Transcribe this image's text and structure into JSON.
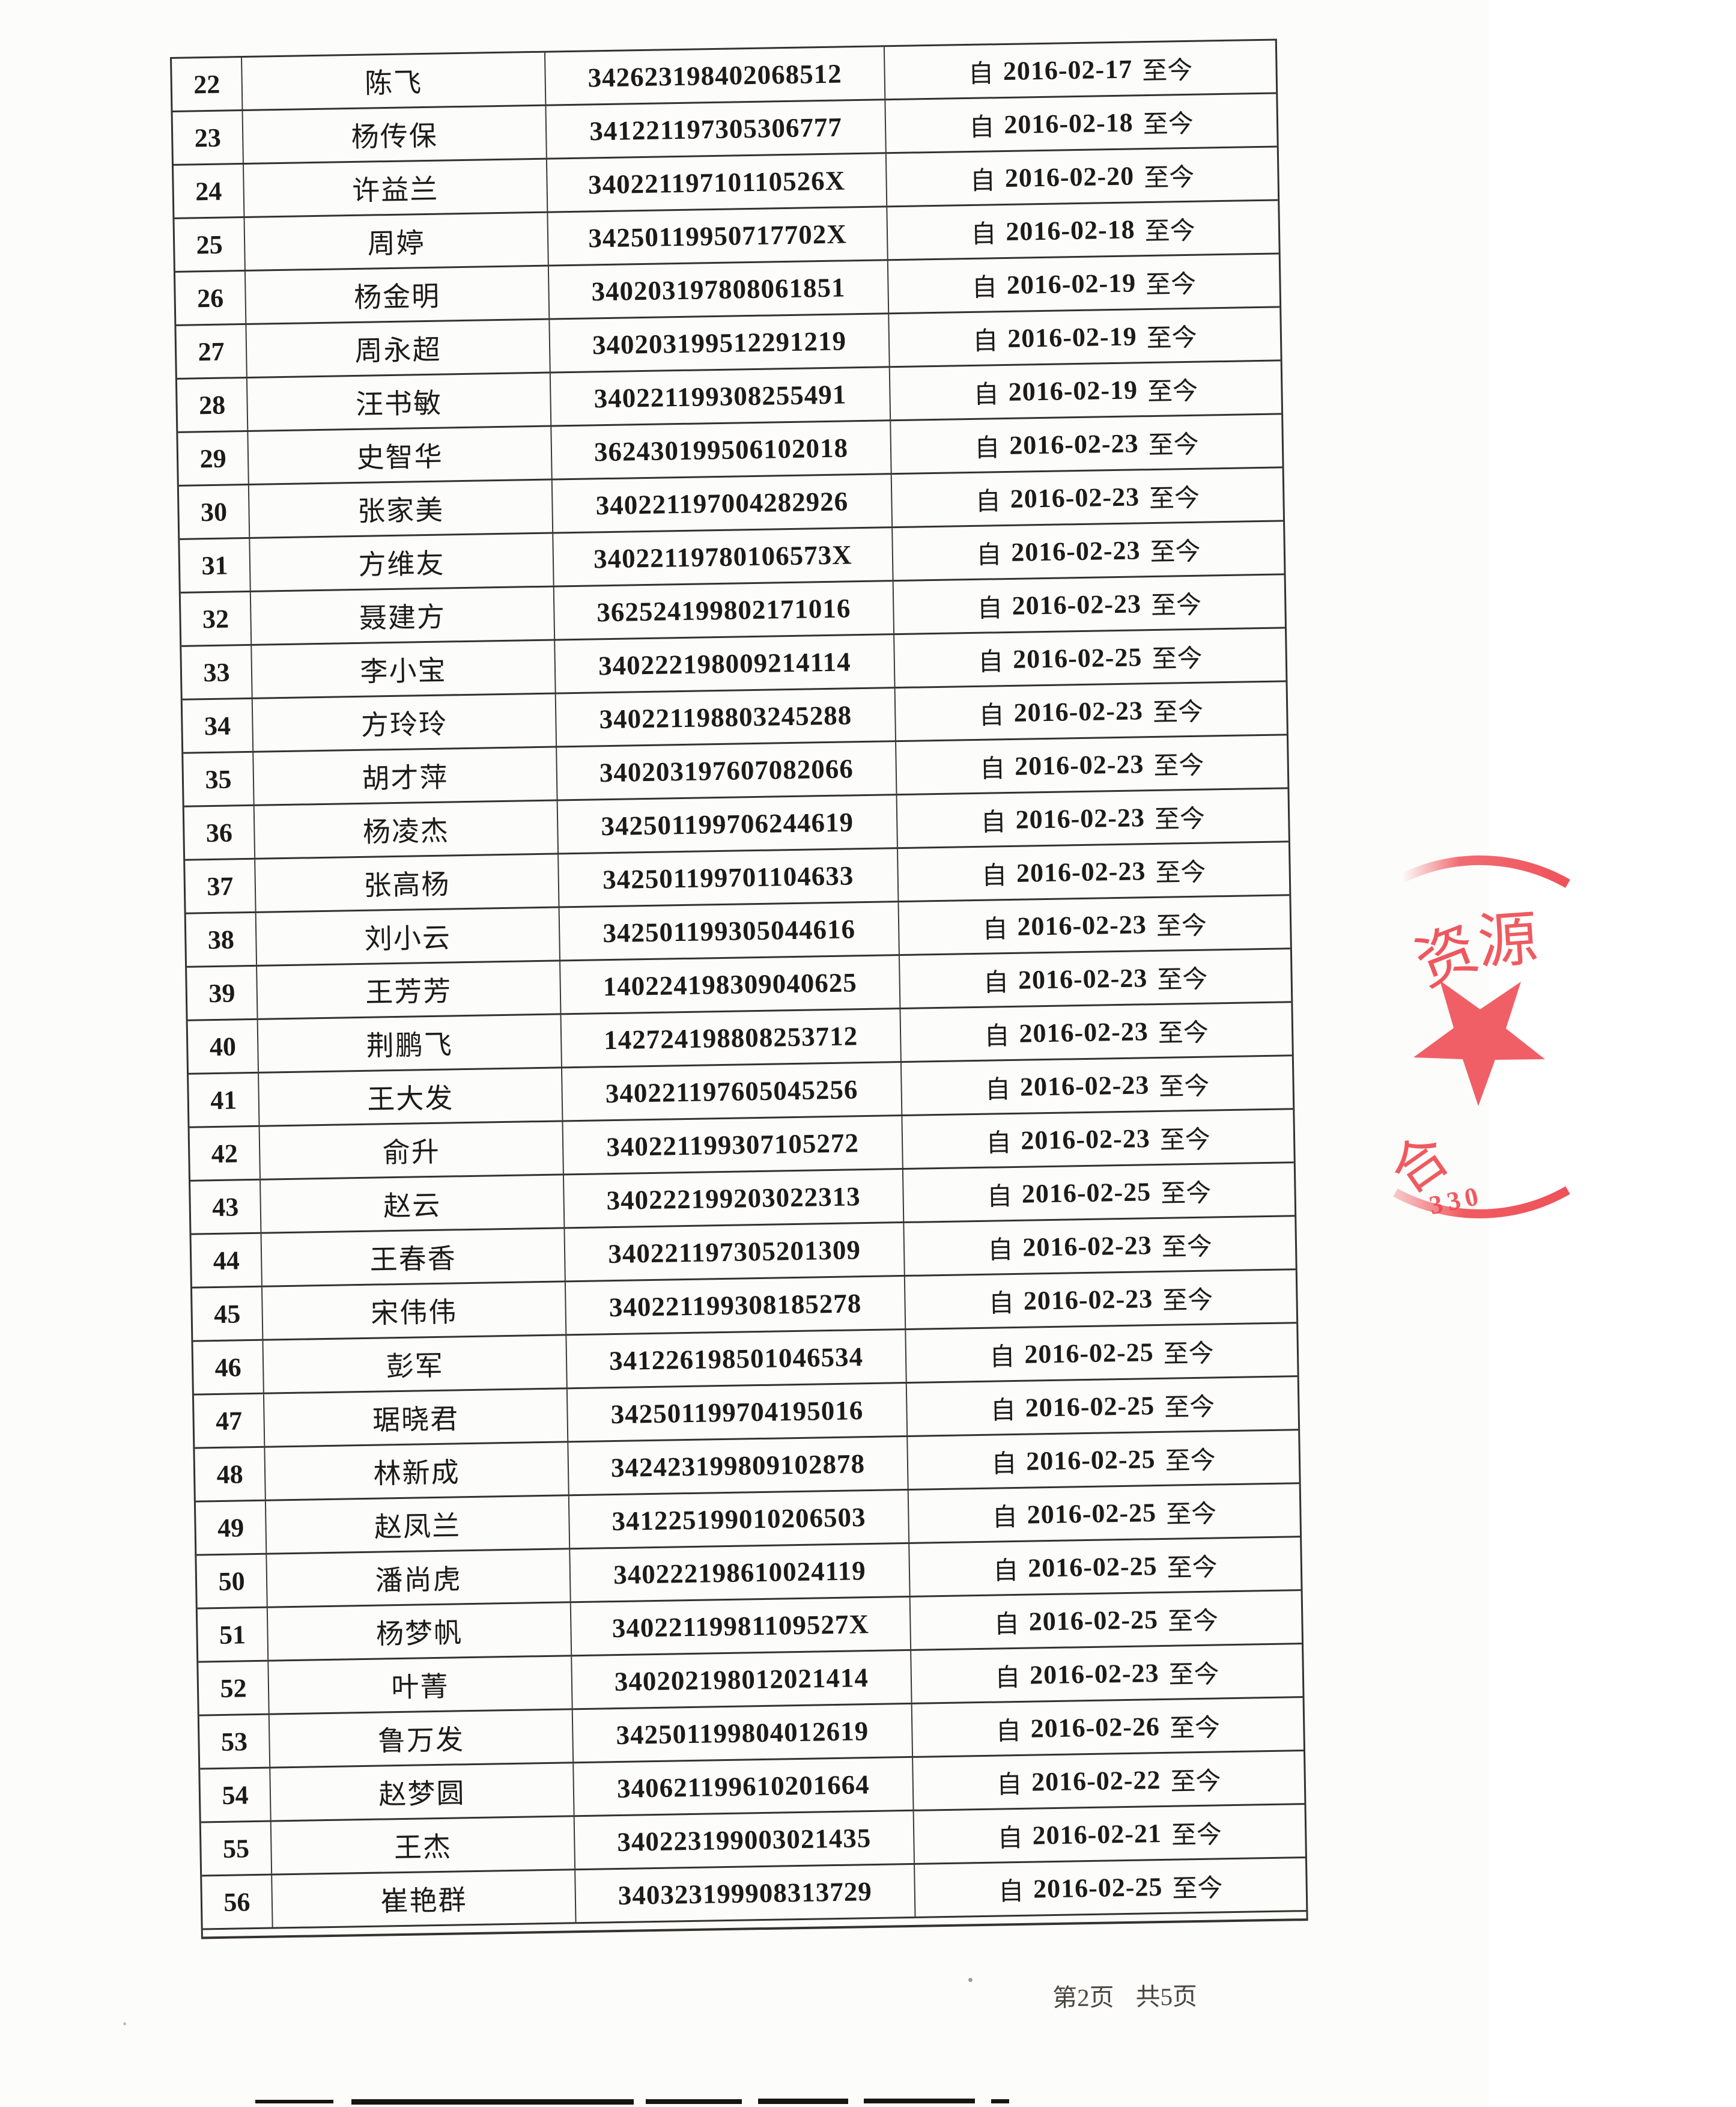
{
  "page": {
    "footer_current": "第2页",
    "footer_total": "共5页"
  },
  "table": {
    "period_prefix": "自",
    "period_suffix": "至今",
    "rows": [
      {
        "no": "22",
        "name": "陈飞",
        "id": "342623198402068512",
        "from": "2016-02-17"
      },
      {
        "no": "23",
        "name": "杨传保",
        "id": "341221197305306777",
        "from": "2016-02-18"
      },
      {
        "no": "24",
        "name": "许益兰",
        "id": "34022119710110526X",
        "from": "2016-02-20"
      },
      {
        "no": "25",
        "name": "周婷",
        "id": "34250119950717702X",
        "from": "2016-02-18"
      },
      {
        "no": "26",
        "name": "杨金明",
        "id": "340203197808061851",
        "from": "2016-02-19"
      },
      {
        "no": "27",
        "name": "周永超",
        "id": "340203199512291219",
        "from": "2016-02-19"
      },
      {
        "no": "28",
        "name": "汪书敏",
        "id": "340221199308255491",
        "from": "2016-02-19"
      },
      {
        "no": "29",
        "name": "史智华",
        "id": "362430199506102018",
        "from": "2016-02-23"
      },
      {
        "no": "30",
        "name": "张家美",
        "id": "340221197004282926",
        "from": "2016-02-23"
      },
      {
        "no": "31",
        "name": "方维友",
        "id": "34022119780106573X",
        "from": "2016-02-23"
      },
      {
        "no": "32",
        "name": "聂建方",
        "id": "362524199802171016",
        "from": "2016-02-23"
      },
      {
        "no": "33",
        "name": "李小宝",
        "id": "340222198009214114",
        "from": "2016-02-25"
      },
      {
        "no": "34",
        "name": "方玲玲",
        "id": "340221198803245288",
        "from": "2016-02-23"
      },
      {
        "no": "35",
        "name": "胡才萍",
        "id": "340203197607082066",
        "from": "2016-02-23"
      },
      {
        "no": "36",
        "name": "杨凌杰",
        "id": "342501199706244619",
        "from": "2016-02-23"
      },
      {
        "no": "37",
        "name": "张高杨",
        "id": "342501199701104633",
        "from": "2016-02-23"
      },
      {
        "no": "38",
        "name": "刘小云",
        "id": "342501199305044616",
        "from": "2016-02-23"
      },
      {
        "no": "39",
        "name": "王芳芳",
        "id": "140224198309040625",
        "from": "2016-02-23"
      },
      {
        "no": "40",
        "name": "荆鹏飞",
        "id": "142724198808253712",
        "from": "2016-02-23"
      },
      {
        "no": "41",
        "name": "王大发",
        "id": "340221197605045256",
        "from": "2016-02-23"
      },
      {
        "no": "42",
        "name": "俞升",
        "id": "340221199307105272",
        "from": "2016-02-23"
      },
      {
        "no": "43",
        "name": "赵云",
        "id": "340222199203022313",
        "from": "2016-02-25"
      },
      {
        "no": "44",
        "name": "王春香",
        "id": "340221197305201309",
        "from": "2016-02-23"
      },
      {
        "no": "45",
        "name": "宋伟伟",
        "id": "340221199308185278",
        "from": "2016-02-23"
      },
      {
        "no": "46",
        "name": "彭军",
        "id": "341226198501046534",
        "from": "2016-02-25"
      },
      {
        "no": "47",
        "name": "琚晓君",
        "id": "342501199704195016",
        "from": "2016-02-25"
      },
      {
        "no": "48",
        "name": "林新成",
        "id": "342423199809102878",
        "from": "2016-02-25"
      },
      {
        "no": "49",
        "name": "赵凤兰",
        "id": "341225199010206503",
        "from": "2016-02-25"
      },
      {
        "no": "50",
        "name": "潘尚虎",
        "id": "340222198610024119",
        "from": "2016-02-25"
      },
      {
        "no": "51",
        "name": "杨梦帆",
        "id": "34022119981109527X",
        "from": "2016-02-25"
      },
      {
        "no": "52",
        "name": "叶菁",
        "id": "340202198012021414",
        "from": "2016-02-23"
      },
      {
        "no": "53",
        "name": "鲁万发",
        "id": "342501199804012619",
        "from": "2016-02-26"
      },
      {
        "no": "54",
        "name": "赵梦圆",
        "id": "340621199610201664",
        "from": "2016-02-22"
      },
      {
        "no": "55",
        "name": "王杰",
        "id": "340223199003021435",
        "from": "2016-02-21"
      },
      {
        "no": "56",
        "name": "崔艳群",
        "id": "340323199908313729",
        "from": "2016-02-25"
      }
    ]
  },
  "stamp": {
    "top_text": "资",
    "top_text_partial": "源",
    "bottom_text": "合",
    "serial_digits": "330",
    "color": "#ee4950"
  }
}
